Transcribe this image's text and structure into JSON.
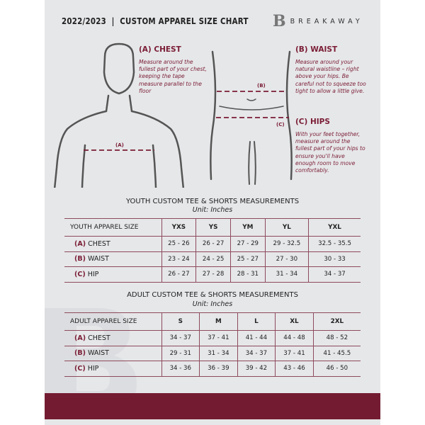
{
  "header": {
    "title": "2022/2023  |  CUSTOM APPAREL SIZE CHART",
    "brand_logo": "B",
    "brand_name": "BREAKAWAY"
  },
  "measure": {
    "chest": {
      "title": "(A) CHEST",
      "desc": "Measure around the fullest part of your chest, keeping the tape measure parallel to the floor",
      "marker": "(A)"
    },
    "waist": {
      "title": "(B) WAIST",
      "desc": "Measure around your natural waistline – right above your hips. Be careful not to squeeze too tight to allow a little give.",
      "marker": "(B)"
    },
    "hips": {
      "title": "(C) HIPS",
      "desc": "With your feet together, measure around the fullest part of your hips to ensure you'll have enough room to move comfortably.",
      "marker": "(C)"
    }
  },
  "youth": {
    "title": "YOUTH CUSTOM TEE & SHORTS MEASUREMENTS",
    "unit": "Unit: Inches",
    "header": "YOUTH APPAREL SIZE",
    "sizes": [
      "YXS",
      "YS",
      "YM",
      "YL",
      "YXL"
    ],
    "rows": [
      {
        "code": "(A)",
        "label": "CHEST",
        "values": [
          "25 - 26",
          "26 - 27",
          "27 - 29",
          "29 - 32.5",
          "32.5 - 35.5"
        ]
      },
      {
        "code": "(B)",
        "label": "WAIST",
        "values": [
          "23 - 24",
          "24 - 25",
          "25 - 27",
          "27 - 30",
          "30 - 33"
        ]
      },
      {
        "code": "(C)",
        "label": "HIP",
        "values": [
          "26 - 27",
          "27 - 28",
          "28 - 31",
          "31 - 34",
          "34 - 37"
        ]
      }
    ]
  },
  "adult": {
    "title": "ADULT CUSTOM TEE & SHORTS MEASUREMENTS",
    "unit": "Unit: Inches",
    "header": "ADULT APPAREL SIZE",
    "sizes": [
      "S",
      "M",
      "L",
      "XL",
      "2XL"
    ],
    "rows": [
      {
        "code": "(A)",
        "label": "CHEST",
        "values": [
          "34 - 37",
          "37 - 41",
          "41 - 44",
          "44 - 48",
          "48 - 52"
        ]
      },
      {
        "code": "(B)",
        "label": "WAIST",
        "values": [
          "29 - 31",
          "31 - 34",
          "34 - 37",
          "37 - 41",
          "41 - 45.5"
        ]
      },
      {
        "code": "(C)",
        "label": "HIP",
        "values": [
          "34 - 36",
          "36 - 39",
          "39 - 42",
          "43 - 46",
          "46 - 50"
        ]
      }
    ]
  },
  "colors": {
    "accent": "#7a1d35",
    "footer": "#731c31",
    "background": "#e6e7e9"
  }
}
